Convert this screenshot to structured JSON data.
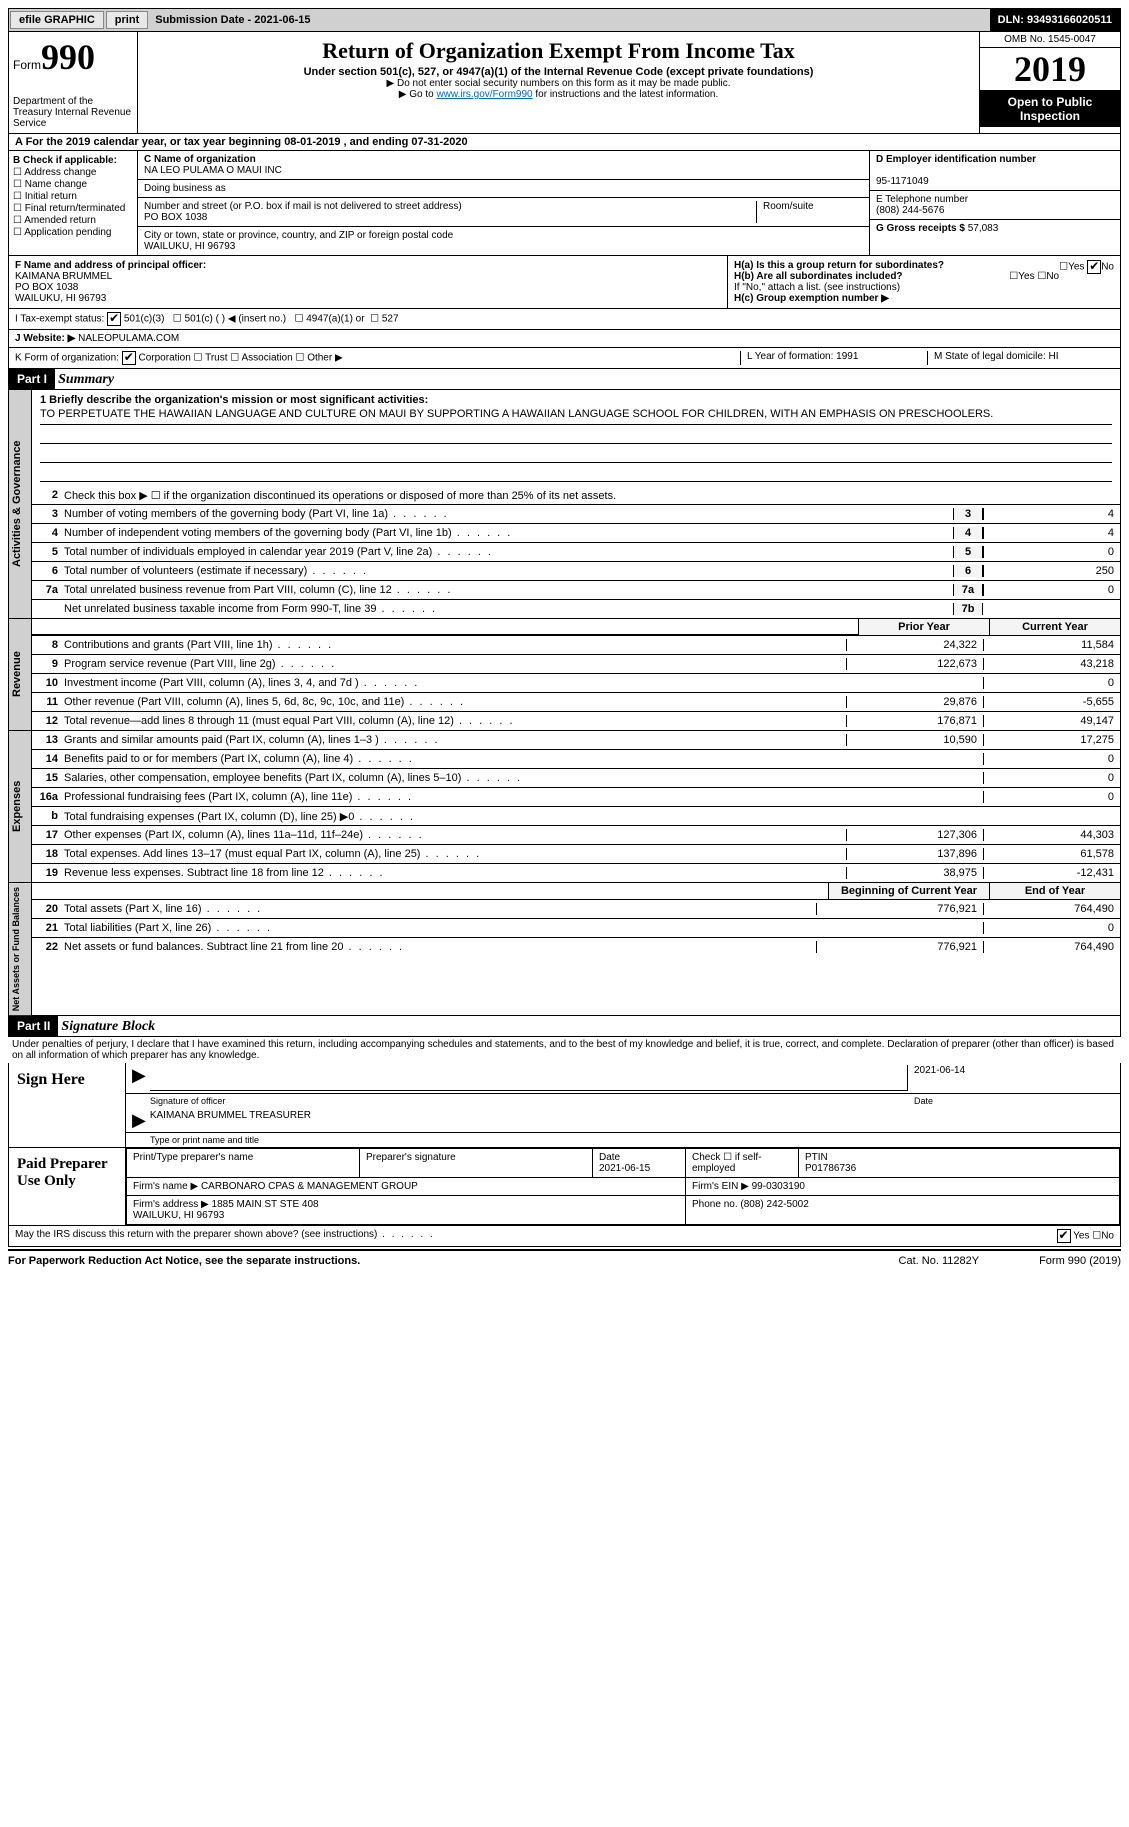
{
  "topbar": {
    "efile": "efile GRAPHIC",
    "print": "print",
    "sub_label": "Submission Date - 2021-06-15",
    "dln": "DLN: 93493166020511"
  },
  "header": {
    "form_word": "Form",
    "form_no": "990",
    "dept": "Department of the Treasury Internal Revenue Service",
    "title": "Return of Organization Exempt From Income Tax",
    "subtitle": "Under section 501(c), 527, or 4947(a)(1) of the Internal Revenue Code (except private foundations)",
    "note1": "▶ Do not enter social security numbers on this form as it may be made public.",
    "note2_pre": "▶ Go to ",
    "note2_link": "www.irs.gov/Form990",
    "note2_post": " for instructions and the latest information.",
    "omb": "OMB No. 1545-0047",
    "year": "2019",
    "open": "Open to Public Inspection"
  },
  "row_a": "A For the 2019 calendar year, or tax year beginning 08-01-2019    , and ending 07-31-2020",
  "box_b": {
    "title": "B Check if applicable:",
    "opts": [
      "Address change",
      "Name change",
      "Initial return",
      "Final return/terminated",
      "Amended return",
      "Application pending"
    ]
  },
  "box_c": {
    "label_name": "C Name of organization",
    "name": "NA LEO PULAMA O MAUI INC",
    "dba_label": "Doing business as",
    "addr_label": "Number and street (or P.O. box if mail is not delivered to street address)",
    "room_label": "Room/suite",
    "addr": "PO BOX 1038",
    "city_label": "City or town, state or province, country, and ZIP or foreign postal code",
    "city": "WAILUKU, HI  96793"
  },
  "box_d": {
    "label": "D Employer identification number",
    "value": "95-1171049"
  },
  "box_e": {
    "label": "E Telephone number",
    "value": "(808) 244-5676"
  },
  "box_g": {
    "label": "G Gross receipts $",
    "value": "57,083"
  },
  "box_f": {
    "label": "F  Name and address of principal officer:",
    "l1": "KAIMANA BRUMMEL",
    "l2": "PO BOX 1038",
    "l3": "WAILUKU, HI  96793"
  },
  "box_h": {
    "ha": "H(a)  Is this a group return for subordinates?",
    "hb": "H(b)  Are all subordinates included?",
    "hb_note": "If \"No,\" attach a list. (see instructions)",
    "hc": "H(c)  Group exemption number ▶",
    "yes": "Yes",
    "no": "No"
  },
  "row_i": {
    "label": "I   Tax-exempt status:",
    "o1": "501(c)(3)",
    "o2": "501(c) (  ) ◀ (insert no.)",
    "o3": "4947(a)(1) or",
    "o4": "527"
  },
  "row_j": {
    "label": "J   Website: ▶",
    "value": "NALEOPULAMA.COM"
  },
  "row_k": {
    "label": "K Form of organization:",
    "o1": "Corporation",
    "o2": "Trust",
    "o3": "Association",
    "o4": "Other ▶"
  },
  "row_lm": {
    "l": "L Year of formation: 1991",
    "m": "M State of legal domicile: HI"
  },
  "part1": {
    "header": "Part I",
    "title": "Summary",
    "mission_label": "1   Briefly describe the organization's mission or most significant activities:",
    "mission": "TO PERPETUATE THE HAWAIIAN LANGUAGE AND CULTURE ON MAUI BY SUPPORTING A HAWAIIAN LANGUAGE SCHOOL FOR CHILDREN, WITH AN EMPHASIS ON PRESCHOOLERS.",
    "line2": "Check this box ▶ ☐  if the organization discontinued its operations or disposed of more than 25% of its net assets.",
    "governance_tab": "Activities & Governance",
    "revenue_tab": "Revenue",
    "expenses_tab": "Expenses",
    "netassets_tab": "Net Assets or Fund Balances",
    "gov_lines": [
      {
        "n": "3",
        "d": "Number of voting members of the governing body (Part VI, line 1a)",
        "box": "3",
        "v": "4"
      },
      {
        "n": "4",
        "d": "Number of independent voting members of the governing body (Part VI, line 1b)",
        "box": "4",
        "v": "4"
      },
      {
        "n": "5",
        "d": "Total number of individuals employed in calendar year 2019 (Part V, line 2a)",
        "box": "5",
        "v": "0"
      },
      {
        "n": "6",
        "d": "Total number of volunteers (estimate if necessary)",
        "box": "6",
        "v": "250"
      },
      {
        "n": "7a",
        "d": "Total unrelated business revenue from Part VIII, column (C), line 12",
        "box": "7a",
        "v": "0"
      },
      {
        "n": "",
        "d": "Net unrelated business taxable income from Form 990-T, line 39",
        "box": "7b",
        "v": ""
      }
    ],
    "prior_h": "Prior Year",
    "curr_h": "Current Year",
    "rev_lines": [
      {
        "n": "8",
        "d": "Contributions and grants (Part VIII, line 1h)",
        "p": "24,322",
        "c": "11,584"
      },
      {
        "n": "9",
        "d": "Program service revenue (Part VIII, line 2g)",
        "p": "122,673",
        "c": "43,218"
      },
      {
        "n": "10",
        "d": "Investment income (Part VIII, column (A), lines 3, 4, and 7d )",
        "p": "",
        "c": "0"
      },
      {
        "n": "11",
        "d": "Other revenue (Part VIII, column (A), lines 5, 6d, 8c, 9c, 10c, and 11e)",
        "p": "29,876",
        "c": "-5,655"
      },
      {
        "n": "12",
        "d": "Total revenue—add lines 8 through 11 (must equal Part VIII, column (A), line 12)",
        "p": "176,871",
        "c": "49,147"
      }
    ],
    "exp_lines": [
      {
        "n": "13",
        "d": "Grants and similar amounts paid (Part IX, column (A), lines 1–3 )",
        "p": "10,590",
        "c": "17,275"
      },
      {
        "n": "14",
        "d": "Benefits paid to or for members (Part IX, column (A), line 4)",
        "p": "",
        "c": "0"
      },
      {
        "n": "15",
        "d": "Salaries, other compensation, employee benefits (Part IX, column (A), lines 5–10)",
        "p": "",
        "c": "0"
      },
      {
        "n": "16a",
        "d": "Professional fundraising fees (Part IX, column (A), line 11e)",
        "p": "",
        "c": "0"
      },
      {
        "n": "b",
        "d": "Total fundraising expenses (Part IX, column (D), line 25) ▶0",
        "p": "shade",
        "c": "shade"
      },
      {
        "n": "17",
        "d": "Other expenses (Part IX, column (A), lines 11a–11d, 11f–24e)",
        "p": "127,306",
        "c": "44,303"
      },
      {
        "n": "18",
        "d": "Total expenses. Add lines 13–17 (must equal Part IX, column (A), line 25)",
        "p": "137,896",
        "c": "61,578"
      },
      {
        "n": "19",
        "d": "Revenue less expenses. Subtract line 18 from line 12",
        "p": "38,975",
        "c": "-12,431"
      }
    ],
    "bcy_h": "Beginning of Current Year",
    "eoy_h": "End of Year",
    "na_lines": [
      {
        "n": "20",
        "d": "Total assets (Part X, line 16)",
        "p": "776,921",
        "c": "764,490"
      },
      {
        "n": "21",
        "d": "Total liabilities (Part X, line 26)",
        "p": "",
        "c": "0"
      },
      {
        "n": "22",
        "d": "Net assets or fund balances. Subtract line 21 from line 20",
        "p": "776,921",
        "c": "764,490"
      }
    ]
  },
  "part2": {
    "header": "Part II",
    "title": "Signature Block",
    "penalty": "Under penalties of perjury, I declare that I have examined this return, including accompanying schedules and statements, and to the best of my knowledge and belief, it is true, correct, and complete. Declaration of preparer (other than officer) is based on all information of which preparer has any knowledge.",
    "sign_here": "Sign Here",
    "sig_officer": "Signature of officer",
    "sig_date": "2021-06-14",
    "date_label": "Date",
    "officer_name": "KAIMANA BRUMMEL TREASURER",
    "type_label": "Type or print name and title",
    "paid_label": "Paid Preparer Use Only",
    "h_prep": "Print/Type preparer's name",
    "h_sig": "Preparer's signature",
    "h_date": "Date",
    "h_date_v": "2021-06-15",
    "h_check": "Check ☐ if self-employed",
    "h_ptin": "PTIN",
    "ptin": "P01786736",
    "firm_name_l": "Firm's name    ▶",
    "firm_name": "CARBONARO CPAS & MANAGEMENT GROUP",
    "firm_ein_l": "Firm's EIN ▶",
    "firm_ein": "99-0303190",
    "firm_addr_l": "Firm's address ▶",
    "firm_addr": "1885 MAIN ST STE 408\nWAILUKU, HI  96793",
    "phone_l": "Phone no.",
    "phone": "(808) 242-5002",
    "discuss": "May the IRS discuss this return with the preparer shown above? (see instructions)",
    "yes": "Yes",
    "no": "No"
  },
  "footer": {
    "left": "For Paperwork Reduction Act Notice, see the separate instructions.",
    "mid": "Cat. No. 11282Y",
    "right": "Form 990 (2019)"
  }
}
